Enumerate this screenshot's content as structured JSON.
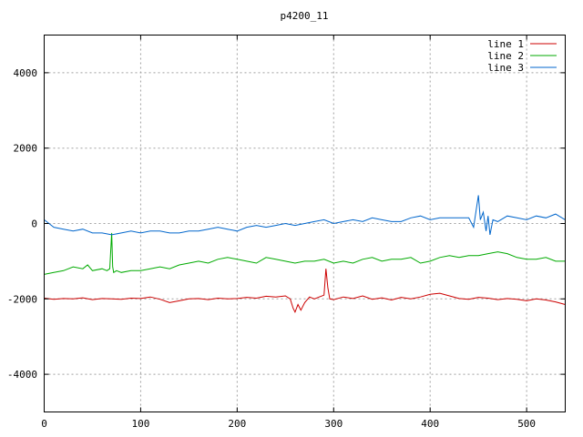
{
  "chart_data": {
    "type": "line",
    "title": "p4200_11",
    "xlabel": "",
    "ylabel": "",
    "xlim": [
      0,
      540
    ],
    "ylim": [
      -5000,
      5000
    ],
    "xticks": [
      0,
      100,
      200,
      300,
      400,
      500
    ],
    "yticks": [
      -4000,
      -2000,
      0,
      2000,
      4000
    ],
    "grid": true,
    "legend_position": "top-right",
    "series": [
      {
        "name": "line 1",
        "color": "#cc0000",
        "x": [
          0,
          10,
          20,
          30,
          40,
          50,
          60,
          70,
          80,
          90,
          100,
          110,
          120,
          130,
          140,
          150,
          160,
          170,
          180,
          190,
          200,
          210,
          220,
          230,
          240,
          250,
          255,
          258,
          260,
          263,
          266,
          270,
          275,
          280,
          285,
          290,
          292,
          294,
          296,
          300,
          310,
          320,
          330,
          340,
          350,
          360,
          370,
          380,
          390,
          400,
          410,
          420,
          430,
          440,
          450,
          460,
          470,
          480,
          490,
          500,
          510,
          520,
          530,
          540
        ],
        "y": [
          -1980,
          -2010,
          -1990,
          -2000,
          -1970,
          -2020,
          -1990,
          -2000,
          -2010,
          -1980,
          -1990,
          -1950,
          -2010,
          -2100,
          -2050,
          -2000,
          -1990,
          -2020,
          -1980,
          -2000,
          -1990,
          -1960,
          -1980,
          -1930,
          -1950,
          -1920,
          -2000,
          -2250,
          -2350,
          -2150,
          -2300,
          -2100,
          -1950,
          -2000,
          -1950,
          -1900,
          -1200,
          -1700,
          -2000,
          -2020,
          -1950,
          -1990,
          -1920,
          -2010,
          -1970,
          -2030,
          -1960,
          -2000,
          -1950,
          -1880,
          -1850,
          -1920,
          -1990,
          -2010,
          -1960,
          -1980,
          -2020,
          -1990,
          -2010,
          -2050,
          -2000,
          -2030,
          -2080,
          -2150
        ]
      },
      {
        "name": "line 2",
        "color": "#00aa00",
        "x": [
          0,
          10,
          20,
          30,
          40,
          45,
          50,
          60,
          65,
          68,
          70,
          71,
          72,
          75,
          80,
          90,
          100,
          110,
          120,
          130,
          140,
          150,
          160,
          170,
          180,
          190,
          200,
          210,
          220,
          230,
          240,
          250,
          260,
          270,
          280,
          290,
          300,
          310,
          320,
          330,
          340,
          350,
          360,
          370,
          380,
          390,
          400,
          410,
          420,
          430,
          440,
          450,
          460,
          470,
          480,
          490,
          500,
          510,
          520,
          530,
          540
        ],
        "y": [
          -1350,
          -1300,
          -1250,
          -1150,
          -1200,
          -1100,
          -1250,
          -1200,
          -1250,
          -1200,
          -250,
          -1150,
          -1300,
          -1250,
          -1300,
          -1250,
          -1250,
          -1200,
          -1150,
          -1200,
          -1100,
          -1050,
          -1000,
          -1050,
          -950,
          -900,
          -950,
          -1000,
          -1050,
          -900,
          -950,
          -1000,
          -1050,
          -1000,
          -1000,
          -950,
          -1050,
          -1000,
          -1050,
          -950,
          -900,
          -1000,
          -950,
          -950,
          -900,
          -1050,
          -1000,
          -900,
          -850,
          -900,
          -850,
          -850,
          -800,
          -750,
          -800,
          -900,
          -950,
          -950,
          -900,
          -1000,
          -1000
        ]
      },
      {
        "name": "line 3",
        "color": "#0066cc",
        "x": [
          0,
          10,
          20,
          30,
          40,
          50,
          60,
          70,
          80,
          90,
          100,
          110,
          120,
          130,
          140,
          150,
          160,
          170,
          180,
          190,
          200,
          210,
          220,
          230,
          240,
          250,
          260,
          270,
          280,
          290,
          300,
          310,
          320,
          330,
          340,
          350,
          360,
          370,
          380,
          390,
          400,
          410,
          420,
          430,
          440,
          445,
          448,
          450,
          452,
          455,
          458,
          460,
          462,
          465,
          470,
          480,
          490,
          500,
          510,
          520,
          530,
          540
        ],
        "y": [
          100,
          -100,
          -150,
          -200,
          -150,
          -250,
          -250,
          -300,
          -250,
          -200,
          -250,
          -200,
          -200,
          -250,
          -250,
          -200,
          -200,
          -150,
          -100,
          -150,
          -200,
          -100,
          -50,
          -100,
          -50,
          0,
          -50,
          0,
          50,
          100,
          0,
          50,
          100,
          50,
          150,
          100,
          50,
          50,
          150,
          200,
          100,
          150,
          150,
          150,
          150,
          -100,
          400,
          750,
          100,
          300,
          -200,
          200,
          -300,
          100,
          50,
          200,
          150,
          100,
          200,
          150,
          250,
          100
        ]
      }
    ]
  }
}
